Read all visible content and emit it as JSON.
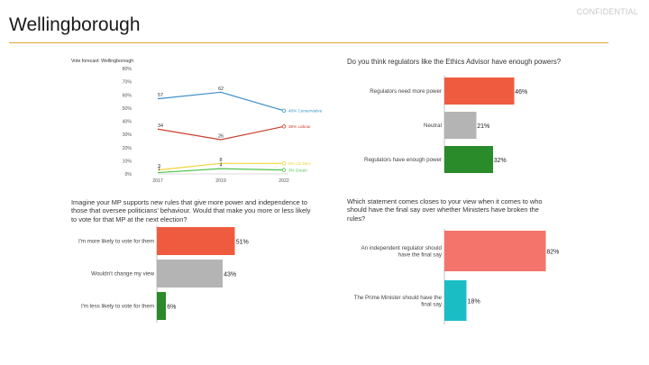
{
  "header": {
    "title": "Wellingborough",
    "confidential": "CONFIDENTIAL",
    "rule_color": "#e0a23a"
  },
  "chart_data": [
    {
      "type": "line",
      "title": "Vote forecast: Wellingborough",
      "x": [
        "2017",
        "2019",
        "2022"
      ],
      "ylim": [
        0,
        80
      ],
      "yticks": [
        "0%",
        "10%",
        "20%",
        "30%",
        "40%",
        "50%",
        "60%",
        "70%",
        "80%"
      ],
      "grid": false,
      "series": [
        {
          "name": "Conservative",
          "color": "#3a8fc7",
          "values": [
            57,
            62,
            48
          ],
          "point_labels": [
            "57",
            "62",
            ""
          ],
          "end_label": "48% Conservative"
        },
        {
          "name": "Labour",
          "color": "#c8412e",
          "values": [
            34,
            26,
            36
          ],
          "point_labels": [
            "34",
            "26",
            ""
          ],
          "end_label": "36% Labour"
        },
        {
          "name": "Lib Dem",
          "color": "#f2d33a",
          "values": [
            3,
            8,
            8
          ],
          "point_labels": [
            "3",
            "8",
            ""
          ],
          "end_label": "8% Lib Dem"
        },
        {
          "name": "Green",
          "color": "#4cc24c",
          "values": [
            1,
            4,
            3
          ],
          "point_labels": [
            "1",
            "4",
            ""
          ],
          "end_label": "3% Green"
        }
      ]
    },
    {
      "type": "bar",
      "orientation": "horizontal",
      "title": "Do you think regulators like the Ethics Advisor have enough powers?",
      "categories": [
        "Regulators need more power",
        "Neutral",
        "Regulators have enough power"
      ],
      "values": [
        46,
        21,
        32
      ],
      "value_labels": [
        "46%",
        "21%",
        "32%"
      ],
      "colors": [
        "#ef5b3f",
        "#b4b4b4",
        "#2a8b2a"
      ],
      "xlim": [
        0,
        100
      ]
    },
    {
      "type": "bar",
      "orientation": "horizontal",
      "title": "Imagine your MP supports new rules that give more power and independence to those that oversee politicians' behaviour. Would that make you more or less likely to vote for that MP at the next election?",
      "categories": [
        "I'm more likely to vote for them",
        "Wouldn't change my view",
        "I'm less likely to vote for them"
      ],
      "values": [
        51,
        43,
        6
      ],
      "value_labels": [
        "51%",
        "43%",
        "6%"
      ],
      "colors": [
        "#ef5b3f",
        "#b4b4b4",
        "#2a8b2a"
      ],
      "xlim": [
        0,
        100
      ]
    },
    {
      "type": "bar",
      "orientation": "horizontal",
      "title": "Which statement comes closes to your view when it comes to who should have the final say over whether Ministers have broken the rules?",
      "categories": [
        "An independent regulator should have the final say",
        "The Prime Minister should have the final say"
      ],
      "values": [
        82,
        18
      ],
      "value_labels": [
        "82%",
        "18%"
      ],
      "colors": [
        "#f4736b",
        "#1bbdc5"
      ],
      "xlim": [
        0,
        100
      ]
    }
  ]
}
